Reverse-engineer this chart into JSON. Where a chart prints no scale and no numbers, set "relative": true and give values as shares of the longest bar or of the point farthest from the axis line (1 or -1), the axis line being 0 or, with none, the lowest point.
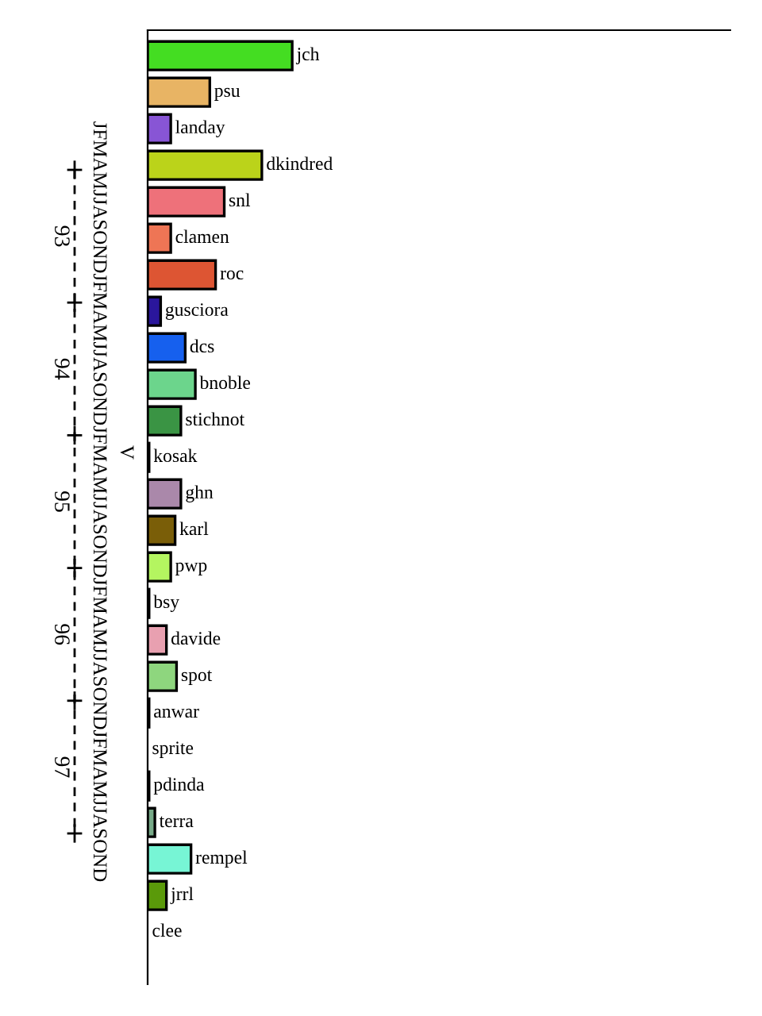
{
  "chart_data": {
    "type": "bar",
    "orientation": "horizontal",
    "relative": true,
    "categories": [
      "jch",
      "psu",
      "landay",
      "dkindred",
      "snl",
      "clamen",
      "roc",
      "gusciora",
      "dcs",
      "bnoble",
      "stichnot",
      "kosak",
      "ghn",
      "karl",
      "pwp",
      "bsy",
      "davide",
      "spot",
      "anwar",
      "sprite",
      "pdinda",
      "terra",
      "rempel",
      "jrrl",
      "clee"
    ],
    "values": [
      1,
      0.43,
      0.16,
      0.79,
      0.53,
      0.16,
      0.47,
      0.09,
      0.26,
      0.33,
      0.23,
      0.01,
      0.23,
      0.19,
      0.16,
      0.01,
      0.13,
      0.2,
      0.01,
      0,
      0.01,
      0.05,
      0.3,
      0.13,
      0
    ],
    "colors": [
      "#44dd22",
      "#e8b464",
      "#8855d5",
      "#bbd31a",
      "#ee717a",
      "#ee7555",
      "#dd5533",
      "#2a169c",
      "#1660ee",
      "#6cd58c",
      "#3a9444",
      "#a0207a",
      "#aa88aa",
      "#7a5e08",
      "#b4f560",
      "#3355cc",
      "#e8a0b0",
      "#8ed67e",
      "#aa1030",
      "#ffffff",
      "#55bb11",
      "#77aa88",
      "#77f5d5",
      "#5a9a0a",
      "#ffffff"
    ],
    "annotations": [
      "JFMAMJJASONDJFMAMJJASONDJFMAMJJASONDJFMAMJJASONDJFMAMJJASOND",
      "93",
      "94",
      "95",
      "96",
      "97",
      "V"
    ],
    "legend": false
  }
}
